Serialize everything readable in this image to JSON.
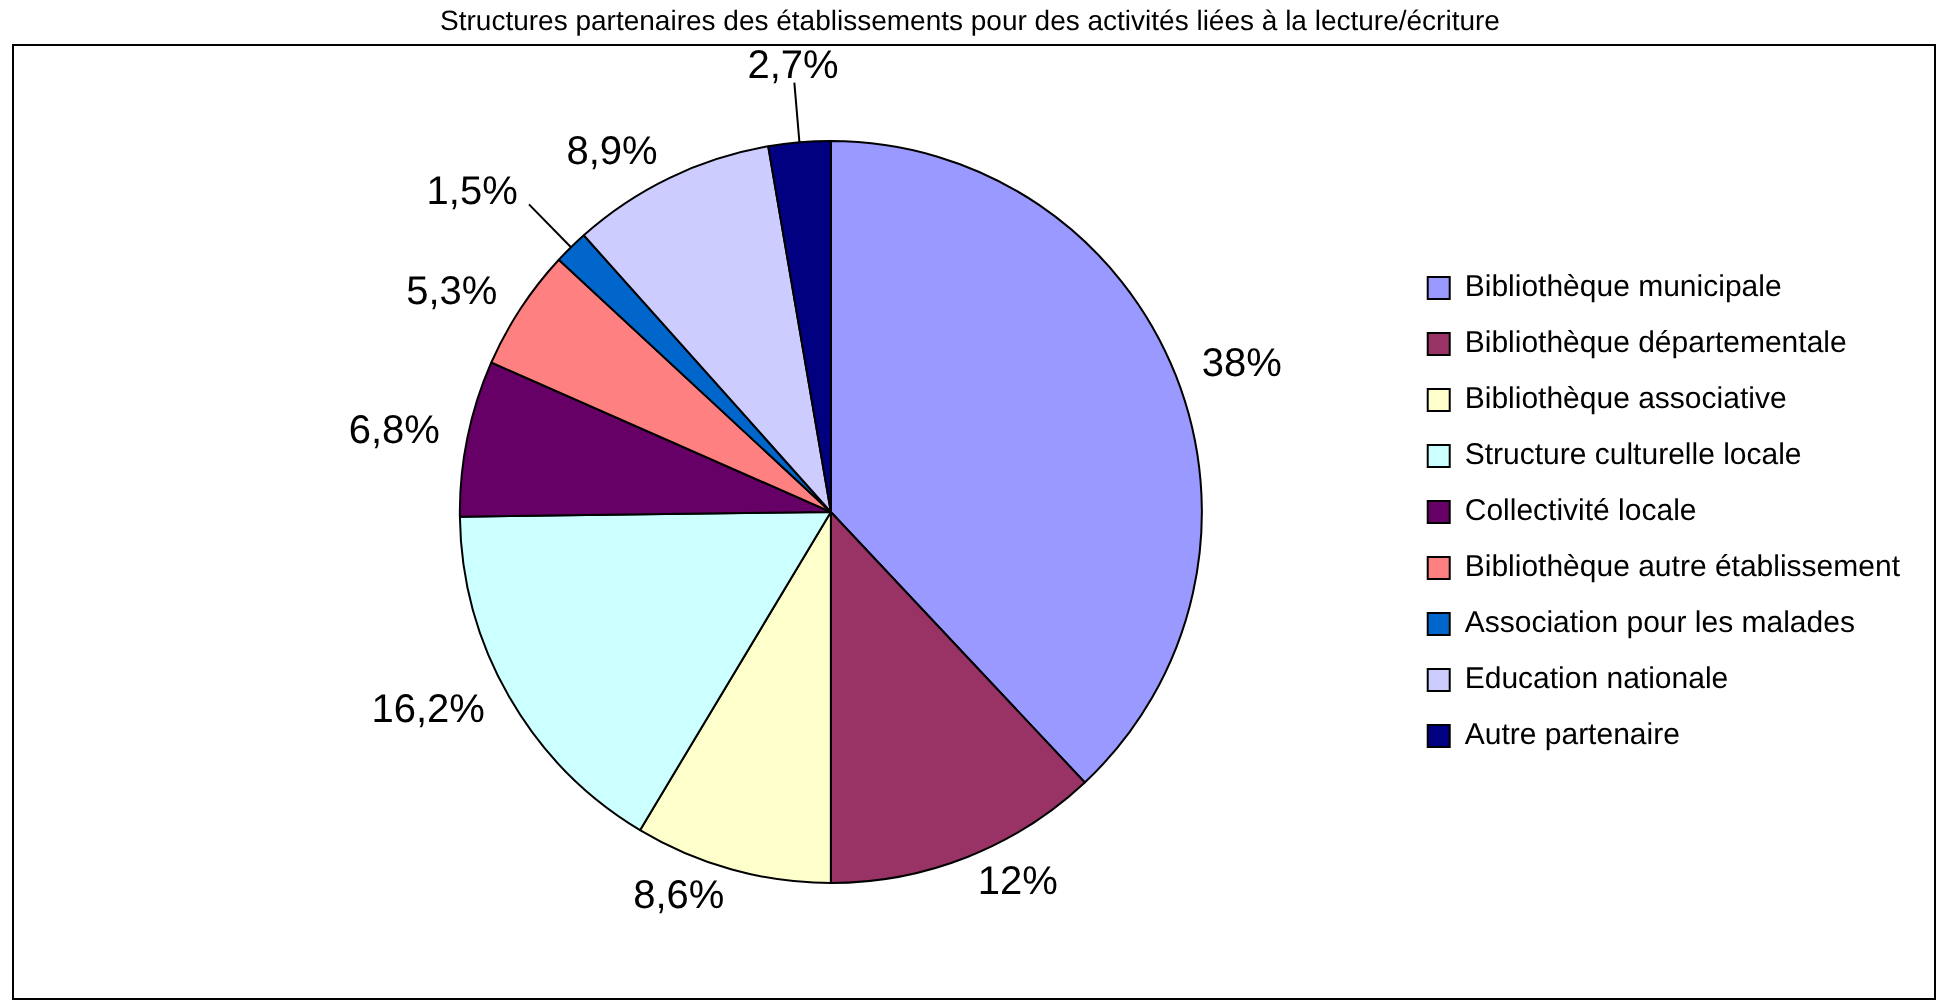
{
  "chart_data": {
    "type": "pie",
    "title": "Structures partenaires des établissements pour des activités liées à la lecture/écriture",
    "categories": [
      "Bibliothèque municipale",
      "Bibliothèque départementale",
      "Bibliothèque associative",
      "Structure culturelle locale",
      "Collectivité locale",
      "Bibliothèque autre établissement",
      "Association pour les malades",
      "Education nationale",
      "Autre partenaire"
    ],
    "values": [
      38,
      12,
      8.6,
      16.2,
      6.8,
      5.3,
      1.5,
      8.9,
      2.7
    ],
    "value_labels": [
      "38%",
      "12%",
      "8,6%",
      "16,2%",
      "6,8%",
      "5,3%",
      "1,5%",
      "8,9%",
      "2,7%"
    ],
    "colors": [
      "#9999ff",
      "#993366",
      "#ffffcc",
      "#ccffff",
      "#660066",
      "#ff8080",
      "#0066cc",
      "#ccccff",
      "#000080"
    ],
    "legend": "right"
  }
}
